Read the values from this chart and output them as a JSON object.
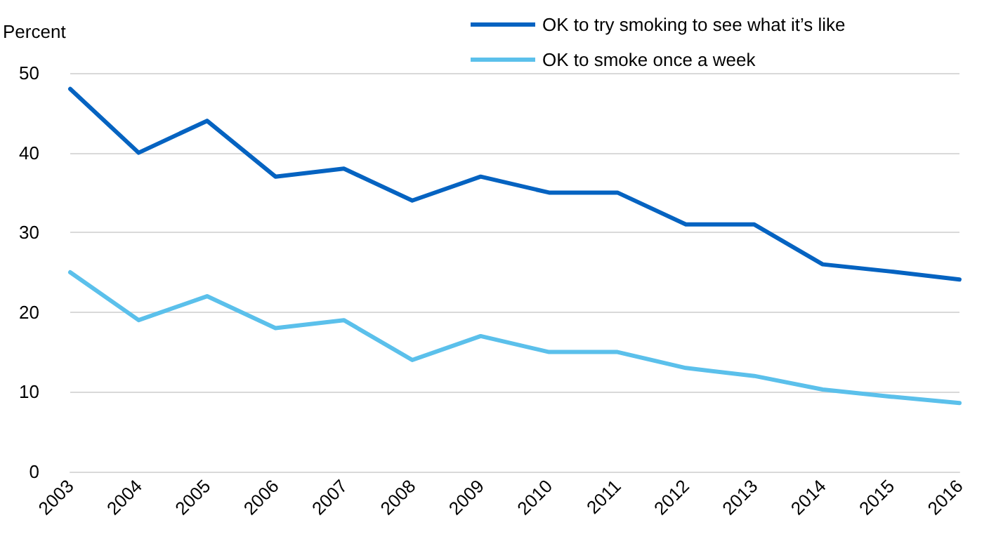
{
  "chart_data": {
    "type": "line",
    "ylabel": "Percent",
    "categories": [
      "2003",
      "2004",
      "2005",
      "2006",
      "2007",
      "2008",
      "2009",
      "2010",
      "2011",
      "2012",
      "2013",
      "2014",
      "2015",
      "2016"
    ],
    "series": [
      {
        "name": "OK to try smoking to see what it’s like",
        "color": "#0563c1",
        "values": [
          48,
          40,
          44,
          37,
          38,
          34,
          37,
          35,
          35,
          31,
          31,
          26,
          25.1,
          24.1
        ]
      },
      {
        "name": "OK to smoke once a week",
        "color": "#5bc0eb",
        "values": [
          25,
          19,
          22,
          18,
          19,
          14,
          17,
          15,
          15,
          13,
          12,
          10.3,
          9.4,
          8.6
        ]
      }
    ],
    "ylim": [
      0,
      50
    ],
    "yticks": [
      0,
      10,
      20,
      30,
      40,
      50
    ],
    "grid": "y",
    "legend": "top right",
    "marker": "none",
    "line_style": "solid"
  }
}
